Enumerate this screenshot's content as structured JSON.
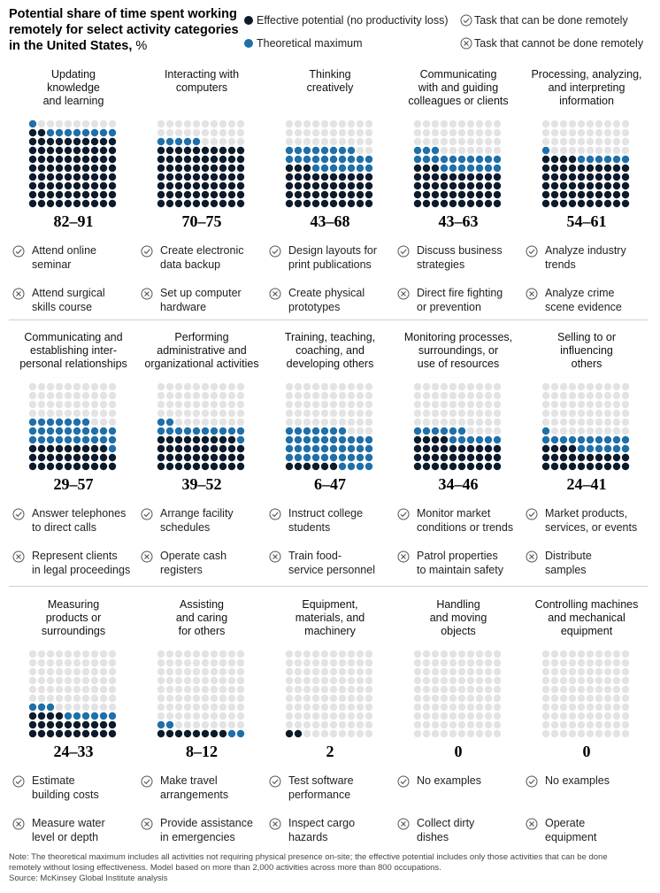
{
  "header": {
    "title": "Potential share of time spent working remotely for select activity categories in the United States,",
    "title_unit": " %"
  },
  "legend": {
    "effective": "Effective potential (no productivity loss)",
    "theoretical": "Theoretical maximum",
    "remote_yes": "Task that can be done remotely",
    "remote_no": "Task that cannot be done remotely"
  },
  "colors": {
    "effective": "#0d1b2a",
    "theoretical": "#1f6fa8",
    "empty": "#e3e3e3",
    "icon": "#555555"
  },
  "chart_data": {
    "type": "waffle",
    "grid": "10x10 dots, each dot = 1%",
    "categories": [
      {
        "name": "Updating knowledge and learning",
        "effective": 82,
        "theoretical": 91,
        "range_label": "82–91",
        "remote_task": "Attend online seminar",
        "non_remote_task": "Attend surgical skills course"
      },
      {
        "name": "Interacting with computers",
        "effective": 70,
        "theoretical": 75,
        "range_label": "70–75",
        "remote_task": "Create electronic data backup",
        "non_remote_task": "Set up computer hardware"
      },
      {
        "name": "Thinking creatively",
        "effective": 43,
        "theoretical": 68,
        "range_label": "43–68",
        "remote_task": "Design layouts for print publications",
        "non_remote_task": "Create physical prototypes"
      },
      {
        "name": "Communicating with and guiding colleagues or clients",
        "effective": 43,
        "theoretical": 63,
        "range_label": "43–63",
        "remote_task": "Discuss business strategies",
        "non_remote_task": "Direct fire fighting or prevention"
      },
      {
        "name": "Processing, analyzing, and interpreting information",
        "effective": 54,
        "theoretical": 61,
        "range_label": "54–61",
        "remote_task": "Analyze industry trends",
        "non_remote_task": "Analyze crime scene evidence"
      },
      {
        "name": "Communicating and establishing inter-personal relationships",
        "effective": 29,
        "theoretical": 57,
        "range_label": "29–57",
        "remote_task": "Answer telephones to direct calls",
        "non_remote_task": "Represent clients in legal proceedings"
      },
      {
        "name": "Performing administrative and organizational activities",
        "effective": 39,
        "theoretical": 52,
        "range_label": "39–52",
        "remote_task": "Arrange facility schedules",
        "non_remote_task": "Operate cash registers"
      },
      {
        "name": "Training, teaching, coaching, and developing others",
        "effective": 6,
        "theoretical": 47,
        "range_label": "6–47",
        "remote_task": "Instruct college students",
        "non_remote_task": "Train food-service personnel"
      },
      {
        "name": "Monitoring processes, surroundings, or use of resources",
        "effective": 34,
        "theoretical": 46,
        "range_label": "34–46",
        "remote_task": "Monitor market conditions or trends",
        "non_remote_task": "Patrol properties to maintain safety"
      },
      {
        "name": "Selling to or influencing others",
        "effective": 24,
        "theoretical": 41,
        "range_label": "24–41",
        "remote_task": "Market products, services, or events",
        "non_remote_task": "Distribute samples"
      },
      {
        "name": "Measuring products or surroundings",
        "effective": 24,
        "theoretical": 33,
        "range_label": "24–33",
        "remote_task": "Estimate building costs",
        "non_remote_task": "Measure water level or depth"
      },
      {
        "name": "Assisting and caring for others",
        "effective": 8,
        "theoretical": 12,
        "range_label": "8–12",
        "remote_task": "Make travel arrangements",
        "non_remote_task": "Provide assistance in emergencies"
      },
      {
        "name": "Equipment, materials, and machinery",
        "effective": 2,
        "theoretical": 2,
        "range_label": "2",
        "remote_task": "Test software performance",
        "non_remote_task": "Inspect cargo hazards"
      },
      {
        "name": "Handling and moving objects",
        "effective": 0,
        "theoretical": 0,
        "range_label": "0",
        "remote_task": "No examples",
        "non_remote_task": "Collect dirty dishes"
      },
      {
        "name": "Controlling machines and mechanical equipment",
        "effective": 0,
        "theoretical": 0,
        "range_label": "0",
        "remote_task": "No examples",
        "non_remote_task": "Operate equipment"
      }
    ]
  },
  "panel_titles": [
    [
      "Updating",
      "knowledge",
      "and learning"
    ],
    [
      "Interacting with",
      "computers"
    ],
    [
      "Thinking",
      "creatively"
    ],
    [
      "Communicating",
      "with and guiding",
      "colleagues or clients"
    ],
    [
      "Processing, analyzing,",
      "and interpreting",
      "information"
    ],
    [
      "Communicating and",
      "establishing inter-",
      "personal relationships"
    ],
    [
      "Performing",
      "administrative and",
      "organizational activities"
    ],
    [
      "Training, teaching,",
      "coaching, and",
      "developing others"
    ],
    [
      "Monitoring processes,",
      "surroundings, or",
      "use of resources"
    ],
    [
      "Selling to or",
      "influencing",
      "others"
    ],
    [
      "Measuring",
      "products or",
      "surroundings"
    ],
    [
      "Assisting",
      "and caring",
      "for others"
    ],
    [
      "Equipment,",
      "materials, and",
      "machinery"
    ],
    [
      "Handling",
      "and moving",
      "objects"
    ],
    [
      "Controlling machines",
      "and mechanical",
      "equipment"
    ]
  ],
  "task_lines": [
    [
      [
        "Attend online",
        "seminar"
      ],
      [
        "Attend surgical",
        "skills course"
      ]
    ],
    [
      [
        "Create electronic",
        "data backup"
      ],
      [
        "Set up computer",
        "hardware"
      ]
    ],
    [
      [
        "Design layouts for",
        "print publications"
      ],
      [
        "Create physical",
        "prototypes"
      ]
    ],
    [
      [
        "Discuss business",
        "strategies"
      ],
      [
        "Direct fire fighting",
        "or prevention"
      ]
    ],
    [
      [
        "Analyze industry",
        "trends"
      ],
      [
        "Analyze crime",
        "scene evidence"
      ]
    ],
    [
      [
        "Answer telephones",
        "to direct calls"
      ],
      [
        "Represent clients",
        "in legal proceedings"
      ]
    ],
    [
      [
        "Arrange facility",
        "schedules"
      ],
      [
        "Operate cash",
        "registers"
      ]
    ],
    [
      [
        "Instruct college",
        "students"
      ],
      [
        "Train food-",
        "service personnel"
      ]
    ],
    [
      [
        "Monitor market",
        "conditions or trends"
      ],
      [
        "Patrol properties",
        "to maintain safety"
      ]
    ],
    [
      [
        "Market products,",
        "services, or events"
      ],
      [
        "Distribute",
        "samples"
      ]
    ],
    [
      [
        "Estimate",
        "building costs"
      ],
      [
        "Measure water",
        "level or depth"
      ]
    ],
    [
      [
        "Make travel",
        "arrangements"
      ],
      [
        "Provide assistance",
        "in emergencies"
      ]
    ],
    [
      [
        "Test software",
        "performance"
      ],
      [
        "Inspect cargo",
        "hazards"
      ]
    ],
    [
      [
        "No examples"
      ],
      [
        "Collect dirty",
        "dishes"
      ]
    ],
    [
      [
        "No examples"
      ],
      [
        "Operate",
        "equipment"
      ]
    ]
  ],
  "footer": {
    "note_line1": "Note: The theoretical maximum includes all activities not requiring physical presence on-site; the effective potential includes only those activities that can be done",
    "note_line2": "remotely without losing effectiveness. Model based on more than 2,000 activities across more than 800 occupations.",
    "source": "Source: McKinsey Global Institute analysis"
  }
}
